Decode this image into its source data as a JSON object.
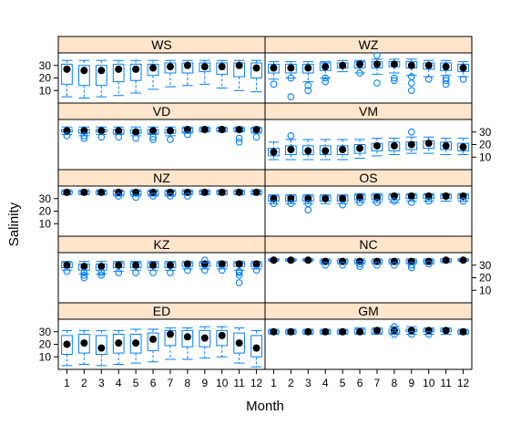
{
  "chart_data": {
    "type": "boxplot",
    "layout": "lattice 2 columns x 5 rows",
    "xlabel": "Month",
    "ylabel": "Salinity",
    "x_ticks": [
      "1",
      "2",
      "3",
      "4",
      "5",
      "6",
      "7",
      "8",
      "9",
      "10",
      "11",
      "12"
    ],
    "y_ticks": [
      10,
      20,
      30
    ],
    "ylim": [
      0,
      40
    ],
    "colors": {
      "box": "#0080ff",
      "median_dot": "#000000",
      "strip_bg": "#ffe5cc",
      "outlier": "#0080ff"
    },
    "panels": [
      {
        "name": "WS",
        "medians": [
          27,
          26,
          26,
          27,
          27,
          28,
          29,
          30,
          29,
          29,
          30,
          28
        ],
        "q1": [
          15,
          14,
          14,
          17,
          18,
          22,
          24,
          24,
          25,
          23,
          21,
          20
        ],
        "q3": [
          31,
          30,
          30,
          31,
          31,
          31,
          32,
          32,
          32,
          32,
          32,
          32
        ],
        "whisker_low": [
          5,
          4,
          5,
          6,
          8,
          11,
          13,
          14,
          15,
          12,
          10,
          9
        ],
        "whisker_high": [
          34,
          34,
          34,
          34,
          34,
          34,
          34,
          34,
          34,
          34,
          34,
          34
        ],
        "outliers": []
      },
      {
        "name": "WZ",
        "medians": [
          28,
          28,
          28,
          29,
          30,
          31,
          31,
          31,
          30,
          30,
          29,
          28
        ],
        "q1": [
          24,
          24,
          24,
          26,
          28,
          28,
          28,
          29,
          28,
          27,
          26,
          25
        ],
        "q3": [
          31,
          31,
          31,
          32,
          32,
          33,
          33,
          33,
          33,
          32,
          32,
          31
        ],
        "whisker_low": [
          19,
          20,
          17,
          20,
          25,
          24,
          23,
          24,
          22,
          21,
          22,
          21
        ],
        "whisker_high": [
          33,
          33,
          33,
          33,
          34,
          34,
          35,
          35,
          35,
          34,
          34,
          33
        ],
        "outliers": [
          [
            1,
            15
          ],
          [
            2,
            5
          ],
          [
            2,
            20
          ],
          [
            3,
            10
          ],
          [
            3,
            14
          ],
          [
            4,
            17
          ],
          [
            4,
            20
          ],
          [
            6,
            24
          ],
          [
            7,
            16
          ],
          [
            7,
            38
          ],
          [
            8,
            18
          ],
          [
            8,
            20
          ],
          [
            9,
            10
          ],
          [
            9,
            16
          ],
          [
            9,
            21
          ],
          [
            10,
            19
          ],
          [
            11,
            15
          ],
          [
            11,
            18
          ],
          [
            11,
            20
          ],
          [
            12,
            19
          ]
        ]
      },
      {
        "name": "VD",
        "medians": [
          31,
          31,
          31,
          31,
          30,
          31,
          31,
          32,
          32,
          32,
          32,
          32
        ],
        "q1": [
          30,
          29,
          30,
          29,
          29,
          29,
          29,
          30,
          31,
          31,
          31,
          30
        ],
        "q3": [
          32,
          32,
          32,
          32,
          32,
          32,
          32,
          33,
          33,
          33,
          33,
          33
        ],
        "whisker_low": [
          28,
          27,
          28,
          28,
          27,
          28,
          27,
          29,
          30,
          30,
          30,
          29
        ],
        "whisker_high": [
          34,
          34,
          34,
          34,
          34,
          34,
          34,
          34,
          34,
          34,
          34,
          34
        ],
        "outliers": [
          [
            1,
            27
          ],
          [
            2,
            25
          ],
          [
            2,
            27
          ],
          [
            3,
            26
          ],
          [
            4,
            26
          ],
          [
            5,
            25
          ],
          [
            6,
            24
          ],
          [
            6,
            26
          ],
          [
            7,
            24
          ],
          [
            8,
            28
          ],
          [
            11,
            22
          ],
          [
            11,
            25
          ],
          [
            12,
            26
          ]
        ]
      },
      {
        "name": "VM",
        "medians": [
          14,
          16,
          15,
          15,
          16,
          17,
          19,
          19,
          20,
          21,
          19,
          18
        ],
        "q1": [
          11,
          12,
          12,
          12,
          12,
          13,
          15,
          15,
          16,
          17,
          16,
          15
        ],
        "q3": [
          17,
          19,
          19,
          19,
          19,
          20,
          21,
          22,
          22,
          23,
          22,
          21
        ],
        "whisker_low": [
          8,
          8,
          8,
          8,
          8,
          9,
          11,
          12,
          13,
          13,
          12,
          12
        ],
        "whisker_high": [
          22,
          24,
          24,
          24,
          24,
          24,
          25,
          25,
          26,
          26,
          25,
          25
        ],
        "outliers": [
          [
            2,
            27
          ],
          [
            9,
            30
          ]
        ]
      },
      {
        "name": "NZ",
        "medians": [
          35,
          35,
          35,
          35,
          35,
          35,
          35,
          35,
          35,
          35,
          35,
          35
        ],
        "q1": [
          34,
          34,
          34,
          33,
          33,
          33,
          33,
          34,
          34,
          34,
          34,
          34
        ],
        "q3": [
          36,
          36,
          36,
          36,
          36,
          36,
          36,
          36,
          36,
          36,
          36,
          36
        ],
        "whisker_low": [
          33,
          33,
          33,
          32,
          32,
          32,
          32,
          33,
          33,
          33,
          33,
          33
        ],
        "whisker_high": [
          37,
          37,
          37,
          37,
          37,
          37,
          37,
          37,
          37,
          37,
          37,
          37
        ],
        "outliers": [
          [
            4,
            32
          ],
          [
            5,
            31
          ],
          [
            6,
            32
          ],
          [
            7,
            32
          ],
          [
            8,
            32
          ]
        ]
      },
      {
        "name": "OS",
        "medians": [
          30,
          30,
          30,
          30,
          30,
          31,
          31,
          32,
          32,
          32,
          32,
          32
        ],
        "q1": [
          28,
          28,
          28,
          28,
          28,
          29,
          29,
          29,
          30,
          30,
          30,
          30
        ],
        "q3": [
          32,
          32,
          32,
          32,
          32,
          33,
          33,
          33,
          33,
          33,
          33,
          33
        ],
        "whisker_low": [
          26,
          26,
          26,
          26,
          26,
          27,
          27,
          27,
          28,
          28,
          28,
          28
        ],
        "whisker_high": [
          33,
          33,
          33,
          33,
          33,
          34,
          34,
          34,
          34,
          34,
          34,
          34
        ],
        "outliers": [
          [
            1,
            26
          ],
          [
            2,
            26
          ],
          [
            3,
            21
          ],
          [
            3,
            26
          ],
          [
            5,
            25
          ],
          [
            6,
            27
          ],
          [
            7,
            27
          ],
          [
            8,
            28
          ],
          [
            9,
            27
          ],
          [
            10,
            28
          ],
          [
            12,
            28
          ]
        ]
      },
      {
        "name": "KZ",
        "medians": [
          30,
          29,
          29,
          30,
          30,
          30,
          30,
          31,
          31,
          31,
          31,
          31
        ],
        "q1": [
          28,
          26,
          26,
          28,
          28,
          28,
          28,
          29,
          29,
          29,
          29,
          29
        ],
        "q3": [
          32,
          31,
          31,
          32,
          32,
          32,
          32,
          32,
          32,
          32,
          32,
          32
        ],
        "whisker_low": [
          26,
          23,
          23,
          25,
          26,
          26,
          26,
          27,
          27,
          27,
          26,
          27
        ],
        "whisker_high": [
          33,
          33,
          33,
          33,
          33,
          33,
          33,
          33,
          33,
          33,
          33,
          33
        ],
        "outliers": [
          [
            1,
            25
          ],
          [
            2,
            20
          ],
          [
            2,
            22
          ],
          [
            2,
            24
          ],
          [
            3,
            22
          ],
          [
            3,
            24
          ],
          [
            4,
            24
          ],
          [
            5,
            24
          ],
          [
            6,
            24
          ],
          [
            7,
            24
          ],
          [
            8,
            26
          ],
          [
            9,
            26
          ],
          [
            9,
            34
          ],
          [
            10,
            26
          ],
          [
            11,
            16
          ],
          [
            11,
            22
          ],
          [
            11,
            24
          ],
          [
            11,
            25
          ],
          [
            12,
            26
          ]
        ]
      },
      {
        "name": "NC",
        "medians": [
          34,
          34,
          34,
          33,
          33,
          33,
          33,
          33,
          33,
          33,
          34,
          34
        ],
        "q1": [
          34,
          34,
          34,
          32,
          32,
          32,
          32,
          32,
          32,
          32,
          33,
          34
        ],
        "q3": [
          35,
          35,
          35,
          34,
          34,
          34,
          34,
          34,
          34,
          34,
          35,
          35
        ],
        "whisker_low": [
          33,
          33,
          33,
          31,
          31,
          31,
          31,
          31,
          31,
          31,
          32,
          33
        ],
        "whisker_high": [
          35,
          35,
          35,
          35,
          35,
          35,
          35,
          35,
          35,
          35,
          35,
          35
        ],
        "outliers": [
          [
            4,
            30
          ],
          [
            5,
            30
          ],
          [
            6,
            29
          ],
          [
            6,
            31
          ],
          [
            7,
            30
          ],
          [
            8,
            30
          ],
          [
            9,
            28
          ],
          [
            9,
            30
          ],
          [
            10,
            31
          ]
        ]
      },
      {
        "name": "ED",
        "medians": [
          20,
          21,
          17,
          21,
          21,
          24,
          28,
          26,
          25,
          27,
          21,
          17
        ],
        "q1": [
          12,
          13,
          12,
          13,
          13,
          15,
          19,
          18,
          18,
          19,
          13,
          10
        ],
        "q3": [
          27,
          28,
          27,
          28,
          28,
          29,
          31,
          31,
          31,
          31,
          29,
          27
        ],
        "whisker_low": [
          3,
          4,
          3,
          4,
          5,
          6,
          8,
          8,
          9,
          10,
          5,
          2
        ],
        "whisker_high": [
          31,
          31,
          31,
          31,
          32,
          32,
          33,
          33,
          34,
          34,
          33,
          31
        ],
        "outliers": []
      },
      {
        "name": "GM",
        "medians": [
          30,
          30,
          30,
          30,
          30,
          30,
          31,
          31,
          31,
          31,
          31,
          30
        ],
        "q1": [
          29,
          29,
          29,
          29,
          29,
          29,
          29,
          29,
          30,
          30,
          30,
          29
        ],
        "q3": [
          31,
          31,
          31,
          31,
          31,
          32,
          32,
          32,
          32,
          32,
          32,
          31
        ],
        "whisker_low": [
          28,
          28,
          28,
          28,
          28,
          28,
          28,
          28,
          28,
          28,
          28,
          28
        ],
        "whisker_high": [
          32,
          32,
          32,
          32,
          32,
          33,
          33,
          34,
          34,
          33,
          33,
          32
        ],
        "outliers": [
          [
            8,
            34
          ],
          [
            8,
            28
          ],
          [
            9,
            28
          ],
          [
            10,
            28
          ]
        ]
      }
    ]
  }
}
